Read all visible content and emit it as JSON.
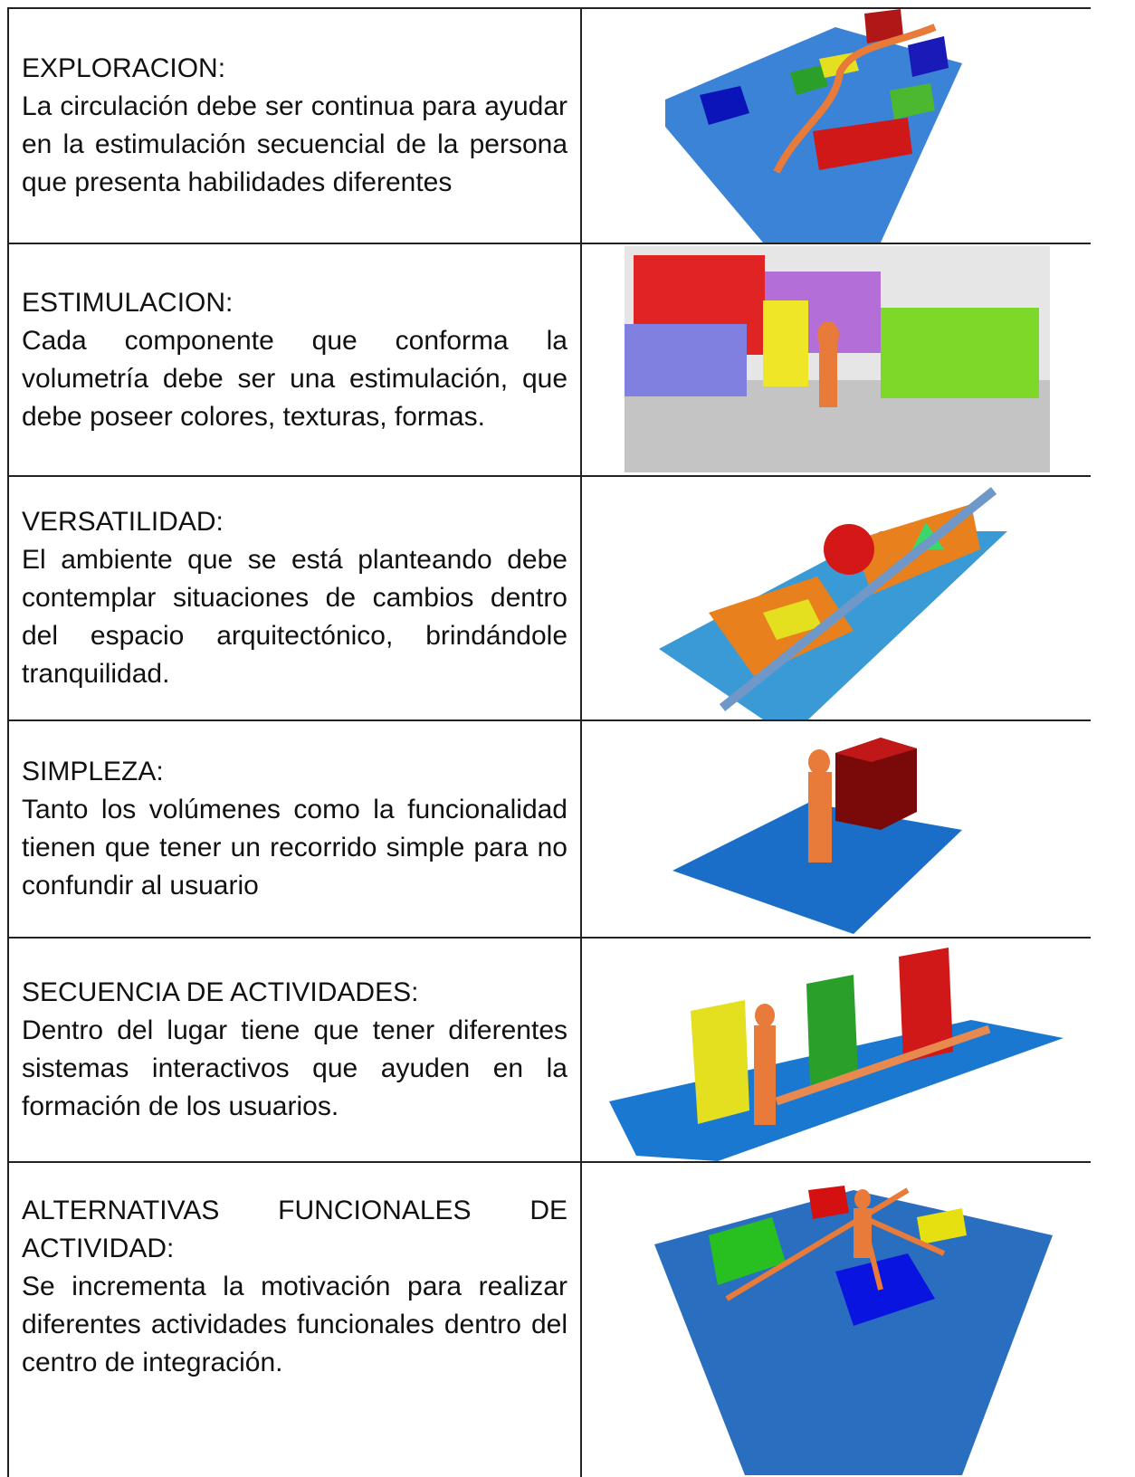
{
  "table": {
    "rows": [
      {
        "title": "EXPLORACION:",
        "body": "La circulación debe ser continua para ayudar en la estimulación secuencial de la persona que presenta habilidades diferentes"
      },
      {
        "title": "ESTIMULACION:",
        "body": "Cada componente que conforma la volumetría debe ser una estimulación, que debe poseer colores, texturas, formas."
      },
      {
        "title": "VERSATILIDAD:",
        "body": "El ambiente que se está planteando debe contemplar situaciones de cambios dentro del espacio arquitectónico, brindándole tranquilidad."
      },
      {
        "title": "SIMPLEZA:",
        "body": "Tanto los volúmenes como la funcionalidad tienen que tener un recorrido simple para no confundir al usuario"
      },
      {
        "title": "SECUENCIA DE ACTIVIDADES:",
        "body": "Dentro del lugar tiene que tener diferentes sistemas interactivos que ayuden en la formación de los usuarios."
      },
      {
        "title": "ALTERNATIVAS FUNCIONALES DE ACTIVIDAD:",
        "body": "Se incrementa la motivación para realizar diferentes actividades funcionales dentro del centro de integración."
      }
    ]
  }
}
